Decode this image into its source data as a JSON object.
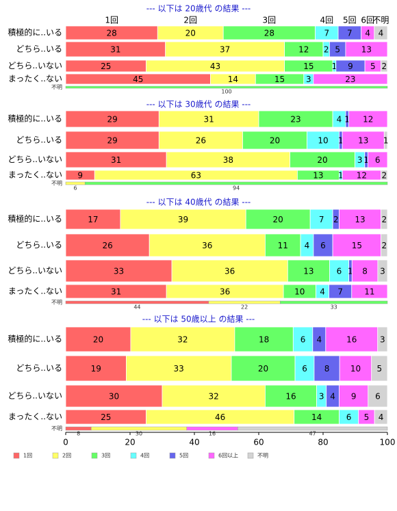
{
  "chart_data": [
    {
      "type": "bar",
      "title": "--- 以下は 20歳代 の結果 ---",
      "column_labels": [
        "1回",
        "2回",
        "3回",
        "4回",
        "5回",
        "6回",
        "不明"
      ],
      "categories": [
        "積極的に..いる",
        "どちら..いる",
        "どちら..いない",
        "まったく..ない",
        "不明"
      ],
      "series": [
        {
          "values": [
            28,
            31,
            25,
            45,
            null
          ]
        },
        {
          "values": [
            20,
            37,
            43,
            14,
            null
          ]
        },
        {
          "values": [
            28,
            12,
            15,
            15,
            100
          ]
        },
        {
          "values": [
            7,
            2,
            1,
            3,
            null
          ]
        },
        {
          "values": [
            7,
            5,
            9,
            null,
            null
          ]
        },
        {
          "values": [
            4,
            13,
            5,
            23,
            null
          ]
        },
        {
          "values": [
            4,
            null,
            2,
            null,
            null
          ]
        }
      ]
    },
    {
      "type": "bar",
      "title": "--- 以下は 30歳代 の結果 ---",
      "categories": [
        "積極的に..いる",
        "どちら..いる",
        "どちら..いない",
        "まったく..ない",
        "不明"
      ],
      "series": [
        {
          "values": [
            29,
            29,
            31,
            9,
            null
          ]
        },
        {
          "values": [
            31,
            26,
            38,
            63,
            6
          ]
        },
        {
          "values": [
            23,
            20,
            20,
            13,
            94
          ]
        },
        {
          "values": [
            4,
            10,
            3,
            1,
            null
          ]
        },
        {
          "values": [
            1,
            1,
            1,
            null,
            null
          ]
        },
        {
          "values": [
            12,
            13,
            6,
            12,
            null
          ]
        },
        {
          "values": [
            null,
            1,
            null,
            2,
            null
          ]
        }
      ]
    },
    {
      "type": "bar",
      "title": "--- 以下は 40歳代 の結果 ---",
      "categories": [
        "積極的に..いる",
        "どちら..いる",
        "どちら..いない",
        "まったく..ない",
        "不明"
      ],
      "series": [
        {
          "values": [
            17,
            26,
            33,
            31,
            44
          ]
        },
        {
          "values": [
            39,
            36,
            36,
            36,
            22
          ]
        },
        {
          "values": [
            20,
            11,
            13,
            10,
            33
          ]
        },
        {
          "values": [
            7,
            4,
            6,
            4,
            null
          ]
        },
        {
          "values": [
            2,
            6,
            1,
            7,
            null
          ]
        },
        {
          "values": [
            13,
            15,
            8,
            11,
            null
          ]
        },
        {
          "values": [
            2,
            2,
            3,
            null,
            null
          ]
        }
      ]
    },
    {
      "type": "bar",
      "title": "--- 以下は 50歳以上 の結果 ---",
      "categories": [
        "積極的に..いる",
        "どちら..いる",
        "どちら..いない",
        "まったく..ない",
        "不明"
      ],
      "series": [
        {
          "values": [
            20,
            19,
            30,
            25,
            8
          ]
        },
        {
          "values": [
            32,
            33,
            32,
            46,
            30
          ]
        },
        {
          "values": [
            18,
            20,
            16,
            14,
            null
          ]
        },
        {
          "values": [
            6,
            6,
            3,
            6,
            null
          ]
        },
        {
          "values": [
            4,
            8,
            4,
            null,
            null
          ]
        },
        {
          "values": [
            16,
            10,
            9,
            5,
            16
          ]
        },
        {
          "values": [
            3,
            5,
            6,
            4,
            47
          ]
        }
      ],
      "xlim": [
        0,
        100
      ],
      "xticks": [
        0,
        20,
        40,
        60,
        80,
        100
      ]
    }
  ],
  "legend": {
    "names": [
      "1回",
      "2回",
      "3回",
      "4回",
      "5回",
      "6回以上",
      "不明"
    ],
    "colors": [
      "#ff6666",
      "#ffff66",
      "#66ff66",
      "#66ffff",
      "#6666ee",
      "#ff66ff",
      "#d3d3d3"
    ]
  }
}
